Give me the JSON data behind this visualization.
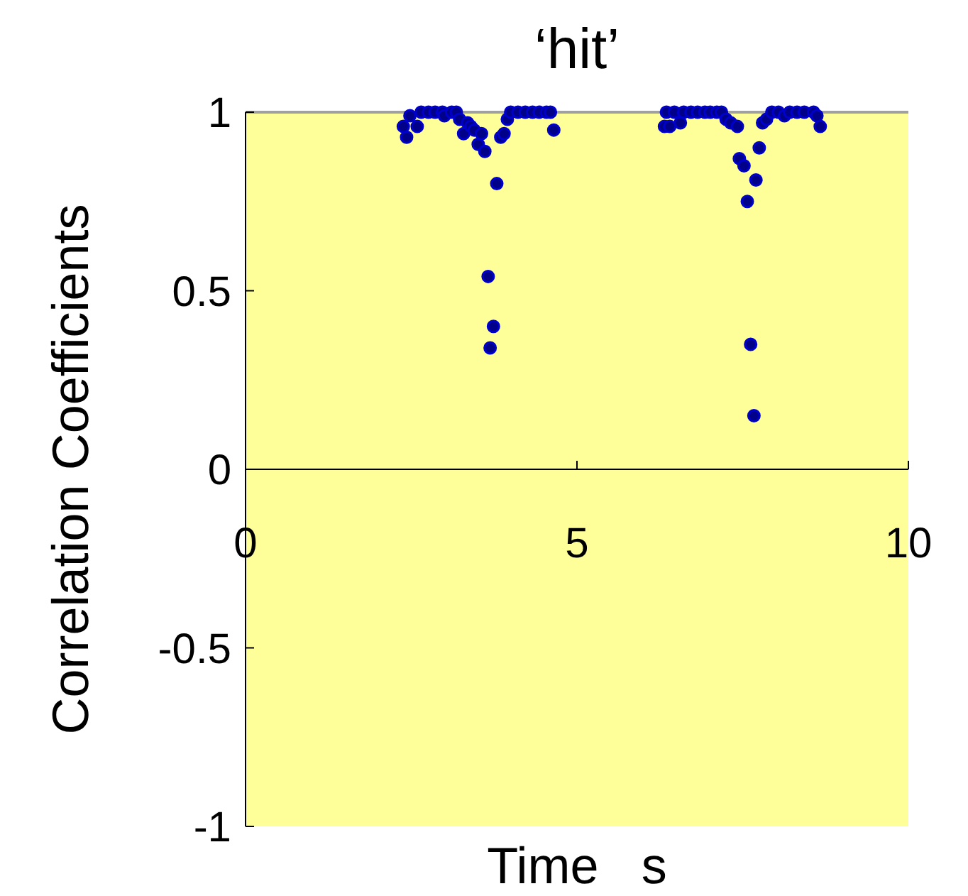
{
  "chart_data": {
    "type": "scatter",
    "title": "‘hit’",
    "xlabel": "Time   s",
    "ylabel": "Correlation Coefficients",
    "xlim": [
      0,
      10
    ],
    "ylim": [
      -1,
      1
    ],
    "xticks": [
      0,
      5,
      10
    ],
    "yticks": [
      -1,
      -0.5,
      0,
      0.5,
      1
    ],
    "grid": false,
    "marker": "circle",
    "series": [
      {
        "color": "#0000cc",
        "x": [
          2.38,
          2.43,
          2.48,
          2.59,
          2.65,
          2.76,
          2.86,
          2.97,
          3.0,
          3.11,
          3.18,
          3.23,
          3.29,
          3.35,
          3.4,
          3.45,
          3.51,
          3.56,
          3.61,
          3.79,
          3.66,
          3.74,
          3.69,
          3.85,
          3.9,
          3.95,
          4.0,
          4.11,
          4.22,
          4.33,
          4.43,
          4.54,
          4.6,
          4.65,
          6.32,
          6.4,
          6.35,
          6.47,
          6.56,
          6.61,
          6.72,
          6.82,
          6.93,
          7.01,
          7.11,
          7.18,
          7.25,
          7.32,
          7.42,
          7.45,
          7.52,
          7.57,
          7.7,
          7.62,
          7.67,
          7.75,
          7.8,
          7.86,
          7.94,
          8.04,
          8.13,
          8.21,
          8.32,
          8.43,
          8.57,
          8.62,
          8.67
        ],
        "values": [
          0.96,
          0.93,
          0.99,
          0.96,
          1.0,
          1.0,
          1.0,
          1.0,
          0.99,
          1.0,
          1.0,
          0.98,
          0.94,
          0.97,
          0.96,
          0.95,
          0.91,
          0.94,
          0.89,
          0.8,
          0.54,
          0.4,
          0.34,
          0.93,
          0.94,
          0.98,
          1.0,
          1.0,
          1.0,
          1.0,
          1.0,
          1.0,
          1.0,
          0.95,
          0.96,
          0.96,
          1.0,
          1.0,
          0.97,
          1.0,
          1.0,
          1.0,
          1.0,
          1.0,
          1.0,
          1.0,
          0.98,
          0.97,
          0.96,
          0.87,
          0.85,
          0.75,
          0.81,
          0.35,
          0.15,
          0.9,
          0.97,
          0.98,
          1.0,
          1.0,
          0.99,
          1.0,
          1.0,
          1.0,
          1.0,
          0.99,
          0.96
        ]
      }
    ]
  }
}
